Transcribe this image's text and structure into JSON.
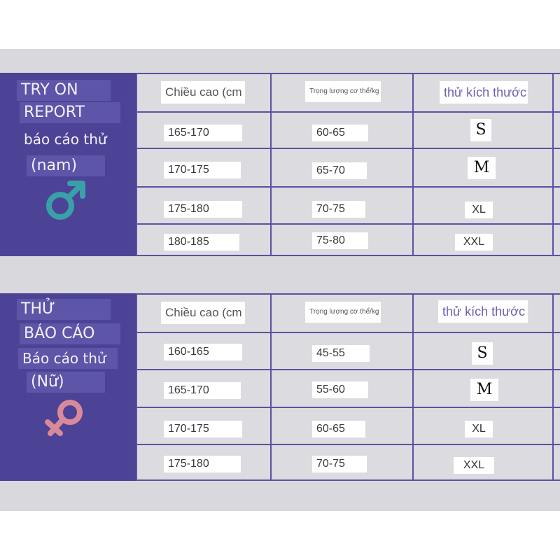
{
  "male": {
    "labels": [
      "TRY ON",
      "REPORT",
      "báo cáo thử",
      "(nam)"
    ],
    "symbol_icon": "male-symbol-icon",
    "symbol_color": "#3aa0a8",
    "headers": [
      "Chiều cao (cm",
      "Trọng lượng cơ thể/kg",
      "thử kích thước"
    ],
    "rows": [
      {
        "height": "165-170",
        "weight": "60-65",
        "size": "S"
      },
      {
        "height": "170-175",
        "weight": "65-70",
        "size": "M"
      },
      {
        "height": "175-180",
        "weight": "70-75",
        "size": "XL"
      },
      {
        "height": "180-185",
        "weight": "75-80",
        "size": "XXL"
      }
    ]
  },
  "female": {
    "labels": [
      "THỬ",
      "BÁO CÁO",
      "Báo cáo thử",
      "(Nữ)"
    ],
    "symbol_icon": "female-symbol-icon",
    "symbol_color": "#d88a9a",
    "headers": [
      "Chiều cao (cm",
      "Trọng lượng cơ thể/kg",
      "thử kích thước"
    ],
    "rows": [
      {
        "height": "160-165",
        "weight": "45-55",
        "size": "S"
      },
      {
        "height": "165-170",
        "weight": "55-60",
        "size": "M"
      },
      {
        "height": "170-175",
        "weight": "60-65",
        "size": "XL"
      },
      {
        "height": "175-180",
        "weight": "70-75",
        "size": "XXL"
      }
    ]
  },
  "colors": {
    "sidebar": "#4c4396",
    "grid": "#5b52a0",
    "panel": "#d9d8dc"
  }
}
